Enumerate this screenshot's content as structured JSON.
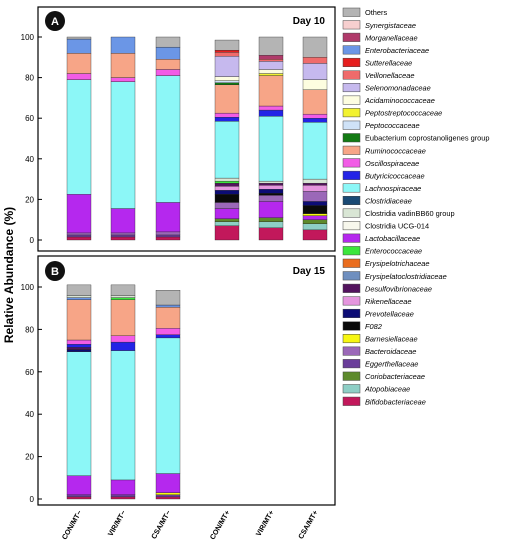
{
  "chart_data": {
    "type": "stacked-bar",
    "ylabel": "Relative Abundance (%)",
    "ylim": [
      0,
      100
    ],
    "yticks": [
      "0",
      "20",
      "40",
      "60",
      "80",
      "100"
    ],
    "categories": [
      "CON/MT−",
      "VIR/MT−",
      "CSA/MT−",
      "CON/MT+",
      "VIR/MT+",
      "CSA/MT+"
    ],
    "panels": [
      {
        "label": "A",
        "title": "Day 10",
        "stacks": [
          [
            [
              "Bifidobacteriaceae",
              1.5
            ],
            [
              "Eggerthellaceae",
              1
            ],
            [
              "Bacteroidaceae",
              1
            ],
            [
              "Lactobacillaceae",
              19
            ],
            [
              "Lachnospiraceae",
              56.5
            ],
            [
              "Oscillospiraceae",
              3
            ],
            [
              "Ruminococcaceae",
              10
            ],
            [
              "Enterobacteriaceae",
              7
            ],
            [
              "Others",
              1
            ]
          ],
          [
            [
              "Bifidobacteriaceae",
              1.5
            ],
            [
              "Eggerthellaceae",
              1
            ],
            [
              "Bacteroidaceae",
              1
            ],
            [
              "Lactobacillaceae",
              12
            ],
            [
              "Lachnospiraceae",
              62.5
            ],
            [
              "Oscillospiraceae",
              2
            ],
            [
              "Ruminococcaceae",
              12
            ],
            [
              "Enterobacteriaceae",
              8
            ]
          ],
          [
            [
              "Bifidobacteriaceae",
              1.5
            ],
            [
              "Eggerthellaceae",
              1
            ],
            [
              "Bacteroidaceae",
              1.5
            ],
            [
              "Lactobacillaceae",
              14.5
            ],
            [
              "Lachnospiraceae",
              62.5
            ],
            [
              "Oscillospiraceae",
              3
            ],
            [
              "Ruminococcaceae",
              5
            ],
            [
              "Enterobacteriaceae",
              6
            ],
            [
              "Others",
              5
            ]
          ],
          [
            [
              "Bifidobacteriaceae",
              7
            ],
            [
              "Atopobiaceae",
              2
            ],
            [
              "Coriobacteriaceae",
              1.5
            ],
            [
              "Lactobacillaceae",
              5
            ],
            [
              "Bacteroidaceae",
              3
            ],
            [
              "F082",
              4
            ],
            [
              "Prevotellaceae",
              2
            ],
            [
              "Rikenellaceae",
              2
            ],
            [
              "Desulfovibrionaceae",
              1.5
            ],
            [
              "Enterococcaceae",
              1
            ],
            [
              "Clostridia vadinBB60 group",
              1.5
            ],
            [
              "Lachnospiraceae",
              28
            ],
            [
              "Butyricicoccaceae",
              2
            ],
            [
              "Oscillospiraceae",
              2
            ],
            [
              "Ruminococcaceae",
              14
            ],
            [
              "Eubacterium coprostanoligenes group",
              1
            ],
            [
              "Peptococcaceae",
              1
            ],
            [
              "Acidaminococcaceae",
              2
            ],
            [
              "Selenomonadaceae",
              10
            ],
            [
              "Veillonellaceae",
              2
            ],
            [
              "Sutterellaceae",
              1
            ],
            [
              "Others",
              5
            ]
          ],
          [
            [
              "Bifidobacteriaceae",
              6
            ],
            [
              "Atopobiaceae",
              3
            ],
            [
              "Coriobacteriaceae",
              2
            ],
            [
              "Lactobacillaceae",
              8
            ],
            [
              "Bacteroidaceae",
              3
            ],
            [
              "F082",
              1
            ],
            [
              "Prevotellaceae",
              2
            ],
            [
              "Rikenellaceae",
              2
            ],
            [
              "Desulfovibrionaceae",
              1
            ],
            [
              "Clostridia vadinBB60 group",
              1
            ],
            [
              "Lachnospiraceae",
              32
            ],
            [
              "Butyricicoccaceae",
              3
            ],
            [
              "Oscillospiraceae",
              2
            ],
            [
              "Ruminococcaceae",
              15
            ],
            [
              "Peptostreptococcaceae",
              1
            ],
            [
              "Acidaminococcaceae",
              2
            ],
            [
              "Selenomonadaceae",
              4
            ],
            [
              "Veillonellaceae",
              1
            ],
            [
              "Morganellaceae",
              2
            ],
            [
              "Others",
              9
            ]
          ],
          [
            [
              "Bifidobacteriaceae",
              5
            ],
            [
              "Atopobiaceae",
              3
            ],
            [
              "Coriobacteriaceae",
              2
            ],
            [
              "Lactobacillaceae",
              2
            ],
            [
              "Barnesiellaceae",
              1
            ],
            [
              "F082",
              4
            ],
            [
              "Prevotellaceae",
              2
            ],
            [
              "Bacteroidaceae",
              5
            ],
            [
              "Rikenellaceae",
              3
            ],
            [
              "Desulfovibrionaceae",
              1
            ],
            [
              "Clostridia vadinBB60 group",
              2
            ],
            [
              "Lachnospiraceae",
              28
            ],
            [
              "Butyricicoccaceae",
              2
            ],
            [
              "Oscillospiraceae",
              2
            ],
            [
              "Ruminococcaceae",
              12
            ],
            [
              "Acidaminococcaceae",
              5
            ],
            [
              "Selenomonadaceae",
              8
            ],
            [
              "Veillonellaceae",
              3
            ],
            [
              "Others",
              10
            ]
          ]
        ]
      },
      {
        "label": "B",
        "title": "Day 15",
        "stacks": [
          [
            [
              "Bifidobacteriaceae",
              1
            ],
            [
              "Eggerthellaceae",
              1
            ],
            [
              "Lactobacillaceae",
              9
            ],
            [
              "Lachnospiraceae",
              58.5
            ],
            [
              "Prevotellaceae",
              1
            ],
            [
              "Desulfovibrionaceae",
              1
            ],
            [
              "Butyricicoccaceae",
              1.5
            ],
            [
              "Oscillospiraceae",
              2
            ],
            [
              "Ruminococcaceae",
              19
            ],
            [
              "Enterobacteriaceae",
              1
            ],
            [
              "Clostridia vadinBB60 group",
              1
            ],
            [
              "Others",
              5
            ]
          ],
          [
            [
              "Bifidobacteriaceae",
              1
            ],
            [
              "Eggerthellaceae",
              1
            ],
            [
              "Lactobacillaceae",
              7
            ],
            [
              "Lachnospiraceae",
              61
            ],
            [
              "Butyricicoccaceae",
              4
            ],
            [
              "Oscillospiraceae",
              3
            ],
            [
              "Ruminococcaceae",
              17
            ],
            [
              "Enterococcaceae",
              1
            ],
            [
              "Clostridia vadinBB60 group",
              1
            ],
            [
              "Others",
              5
            ]
          ],
          [
            [
              "Bifidobacteriaceae",
              1
            ],
            [
              "Eggerthellaceae",
              1
            ],
            [
              "Barnesiellaceae",
              1
            ],
            [
              "Lactobacillaceae",
              9
            ],
            [
              "Lachnospiraceae",
              64
            ],
            [
              "Butyricicoccaceae",
              1.5
            ],
            [
              "Oscillospiraceae",
              3
            ],
            [
              "Ruminococcaceae",
              10
            ],
            [
              "Enterobacteriaceae",
              1
            ],
            [
              "Others",
              7
            ]
          ]
        ]
      }
    ],
    "legend": [
      "Others",
      "Synergistaceae",
      "Morganellaceae",
      "Enterobacteriaceae",
      "Sutterellaceae",
      "Veillonellaceae",
      "Selenomonadaceae",
      "Acidaminococcaceae",
      "Peptostreptococcaceae",
      "Peptococcaceae",
      "Eubacterium coprostanoligenes group",
      "Ruminococcaceae",
      "Oscillospiraceae",
      "Butyricicoccaceae",
      "Lachnospiraceae",
      "Clostridiaceae",
      "Clostridia vadinBB60 group",
      "Clostridia UCG-014",
      "Lactobacillaceae",
      "Enterococcaceae",
      "Erysipelotrichaceae",
      "Erysipelatoclostridiaceae",
      "Desulfovibrionaceae",
      "Rikenellaceae",
      "Prevotellaceae",
      "F082",
      "Barnesiellaceae",
      "Bacteroidaceae",
      "Eggerthellaceae",
      "Coriobacteriaceae",
      "Atopobiaceae",
      "Bifidobacteriaceae"
    ],
    "legend_italic": [
      "Synergistaceae",
      "Morganellaceae",
      "Enterobacteriaceae",
      "Sutterellaceae",
      "Veillonellaceae",
      "Selenomonadaceae",
      "Acidaminococcaceae",
      "Peptostreptococcaceae",
      "Peptococcaceae",
      "Ruminococcaceae",
      "Oscillospiraceae",
      "Butyricicoccaceae",
      "Lachnospiraceae",
      "Clostridiaceae",
      "Lactobacillaceae",
      "Enterococcaceae",
      "Erysipelotrichaceae",
      "Erysipelatoclostridiaceae",
      "Desulfovibrionaceae",
      "Rikenellaceae",
      "Prevotellaceae",
      "F082",
      "Barnesiellaceae",
      "Bacteroidaceae",
      "Eggerthellaceae",
      "Coriobacteriaceae",
      "Atopobiaceae",
      "Bifidobacteriaceae"
    ],
    "legend_position": "right",
    "colors": {
      "Others": "#b4b4b4",
      "Synergistaceae": "#f7cfcf",
      "Morganellaceae": "#b03a6a",
      "Enterobacteriaceae": "#6b96e6",
      "Sutterellaceae": "#e61e1e",
      "Veillonellaceae": "#ef6b6b",
      "Selenomonadaceae": "#c6b9ee",
      "Acidaminococcaceae": "#fdfde0",
      "Peptostreptococcaceae": "#f2f230",
      "Peptococcaceae": "#cfe2f7",
      "Eubacterium coprostanoligenes group": "#137a13",
      "Ruminococcaceae": "#f7a587",
      "Oscillospiraceae": "#f25ce6",
      "Butyricicoccaceae": "#2323e6",
      "Lachnospiraceae": "#8cf7f7",
      "Clostridiaceae": "#1a4a75",
      "Clostridia vadinBB60 group": "#d9e6d5",
      "Clostridia UCG-014": "#f7f7ec",
      "Lactobacillaceae": "#b528ee",
      "Enterococcaceae": "#3ce63c",
      "Erysipelotrichaceae": "#ea6d1e",
      "Erysipelatoclostridiaceae": "#6f8fbf",
      "Desulfovibrionaceae": "#53135e",
      "Rikenellaceae": "#e596de",
      "Prevotellaceae": "#0c0c75",
      "F082": "#0a0a0a",
      "Barnesiellaceae": "#f7f712",
      "Bacteroidaceae": "#9b68b8",
      "Eggerthellaceae": "#6a3d9a",
      "Coriobacteriaceae": "#5d8a2c",
      "Atopobiaceae": "#8ecfc6",
      "Bifidobacteriaceae": "#c2185b"
    }
  }
}
